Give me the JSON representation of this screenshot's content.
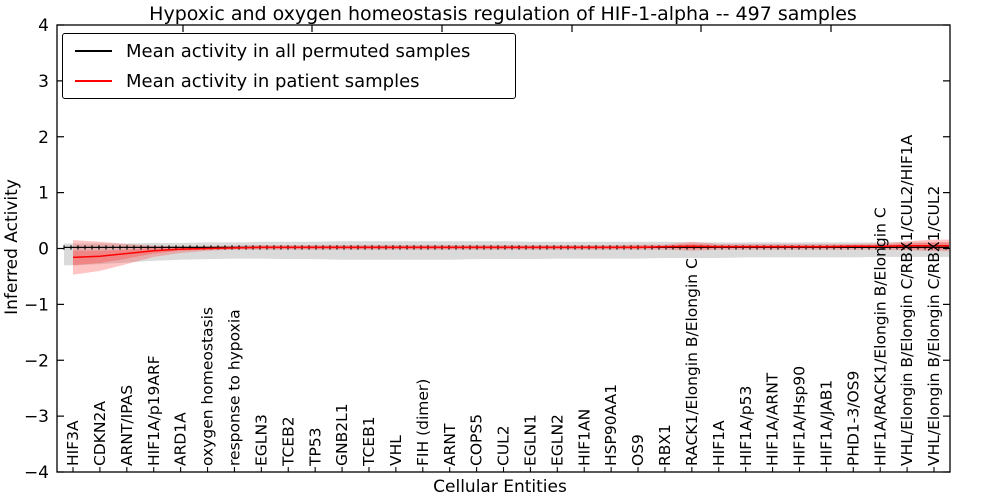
{
  "title": "Hypoxic and oxygen homeostasis regulation of HIF-1-alpha -- 497 samples",
  "legend": {
    "items": [
      {
        "label": "Mean activity in all permuted samples",
        "color": "#000000"
      },
      {
        "label": "Mean activity in patient samples",
        "color": "#ff0000"
      }
    ]
  },
  "axes": {
    "ylabel": "Inferred Activity",
    "xlabel": "Cellular Entities",
    "ytick_labels": [
      "4",
      "3",
      "2",
      "1",
      "0",
      "−1",
      "−2",
      "−3",
      "−4"
    ]
  },
  "chart_data": {
    "type": "line",
    "title": "Hypoxic and oxygen homeostasis regulation of HIF-1-alpha -- 497 samples",
    "xlabel": "Cellular Entities",
    "ylabel": "Inferred Activity",
    "ylim": [
      -4,
      4
    ],
    "yticks": [
      4,
      3,
      2,
      1,
      0,
      -1,
      -2,
      -3,
      -4
    ],
    "grid": false,
    "legend_position": "upper left",
    "sample_count": 497,
    "categories": [
      "HIF3A",
      "CDKN2A",
      "ARNT/IPAS",
      "HIF1A/p19ARF",
      "ARD1A",
      "oxygen homeostasis",
      "response to hypoxia",
      "EGLN3",
      "TCEB2",
      "TP53",
      "GNB2L1",
      "TCEB1",
      "VHL",
      "FIH (dimer)",
      "ARNT",
      "COPS5",
      "CUL2",
      "EGLN1",
      "EGLN2",
      "HIF1AN",
      "HSP90AA1",
      "OS9",
      "RBX1",
      "RACK1/Elongin B/Elongin C",
      "HIF1A",
      "HIF1A/p53",
      "HIF1A/ARNT",
      "HIF1A/Hsp90",
      "HIF1A/JAB1",
      "PHD1-3/OS9",
      "HIF1A/RACK1/Elongin B/Elongin C",
      "VHL/Elongin B/Elongin C/RBX1/CUL2/HIF1A",
      "VHL/Elongin B/Elongin C/RBX1/CUL2"
    ],
    "series": [
      {
        "name": "Mean activity in all permuted samples",
        "color": "#000000",
        "band_color": "#a8a8a8",
        "values": [
          0.02,
          0.02,
          0.02,
          0.02,
          0.02,
          0.02,
          0.02,
          0.02,
          0.02,
          0.02,
          0.02,
          0.02,
          0.02,
          0.02,
          0.02,
          0.02,
          0.02,
          0.02,
          0.02,
          0.02,
          0.02,
          0.02,
          0.02,
          0.02,
          0.02,
          0.02,
          0.02,
          0.02,
          0.02,
          0.02,
          0.02,
          0.02,
          0.02
        ],
        "band_upper": [
          0.09,
          0.09,
          0.09,
          0.1,
          0.1,
          0.11,
          0.11,
          0.12,
          0.12,
          0.12,
          0.13,
          0.13,
          0.13,
          0.13,
          0.13,
          0.13,
          0.13,
          0.12,
          0.12,
          0.12,
          0.12,
          0.12,
          0.12,
          0.11,
          0.11,
          0.11,
          0.11,
          0.11,
          0.11,
          0.11,
          0.11,
          0.11,
          0.11
        ],
        "band_lower": [
          -0.3,
          -0.28,
          -0.25,
          -0.22,
          -0.2,
          -0.19,
          -0.18,
          -0.18,
          -0.19,
          -0.19,
          -0.2,
          -0.2,
          -0.2,
          -0.2,
          -0.2,
          -0.19,
          -0.19,
          -0.19,
          -0.18,
          -0.18,
          -0.18,
          -0.18,
          -0.17,
          -0.17,
          -0.17,
          -0.16,
          -0.16,
          -0.16,
          -0.16,
          -0.16,
          -0.15,
          -0.15,
          -0.15
        ]
      },
      {
        "name": "Mean activity in patient samples",
        "color": "#ff0000",
        "band_color": "#ff4d4d",
        "values": [
          -0.16,
          -0.14,
          -0.09,
          -0.04,
          -0.01,
          0.0,
          0.01,
          0.02,
          0.02,
          0.02,
          0.02,
          0.02,
          0.02,
          0.02,
          0.02,
          0.02,
          0.02,
          0.02,
          0.02,
          0.02,
          0.02,
          0.02,
          0.03,
          0.04,
          0.03,
          0.03,
          0.03,
          0.03,
          0.03,
          0.04,
          0.04,
          0.05,
          0.05
        ],
        "band_upper": [
          0.15,
          0.12,
          0.08,
          0.05,
          0.04,
          0.04,
          0.05,
          0.06,
          0.06,
          0.06,
          0.06,
          0.06,
          0.06,
          0.06,
          0.06,
          0.06,
          0.06,
          0.06,
          0.06,
          0.06,
          0.06,
          0.07,
          0.07,
          0.12,
          0.08,
          0.08,
          0.08,
          0.08,
          0.08,
          0.08,
          0.09,
          0.13,
          0.16
        ],
        "band_lower": [
          -0.47,
          -0.4,
          -0.28,
          -0.15,
          -0.08,
          -0.04,
          -0.02,
          -0.02,
          -0.02,
          -0.02,
          -0.02,
          -0.02,
          -0.02,
          -0.02,
          -0.02,
          -0.02,
          -0.02,
          -0.02,
          -0.02,
          -0.02,
          -0.02,
          -0.02,
          -0.02,
          -0.04,
          -0.02,
          -0.02,
          -0.02,
          -0.02,
          -0.02,
          -0.02,
          -0.02,
          -0.03,
          -0.05
        ],
        "band_inner_upper": [
          -0.04,
          -0.04,
          -0.02,
          0.01,
          0.02,
          0.03,
          0.03,
          0.04,
          0.04,
          0.04,
          0.04,
          0.04,
          0.04,
          0.04,
          0.04,
          0.04,
          0.04,
          0.04,
          0.04,
          0.04,
          0.04,
          0.05,
          0.05,
          0.08,
          0.06,
          0.06,
          0.06,
          0.06,
          0.06,
          0.06,
          0.06,
          0.09,
          0.11
        ],
        "band_inner_lower": [
          -0.3,
          -0.26,
          -0.18,
          -0.09,
          -0.04,
          -0.02,
          -0.01,
          0.0,
          0.0,
          0.0,
          0.0,
          0.0,
          0.0,
          0.0,
          0.0,
          0.0,
          0.0,
          0.0,
          0.0,
          0.0,
          0.0,
          0.0,
          0.01,
          -0.01,
          0.01,
          0.01,
          0.01,
          0.01,
          0.01,
          0.01,
          0.01,
          0.0,
          -0.01
        ]
      }
    ]
  }
}
